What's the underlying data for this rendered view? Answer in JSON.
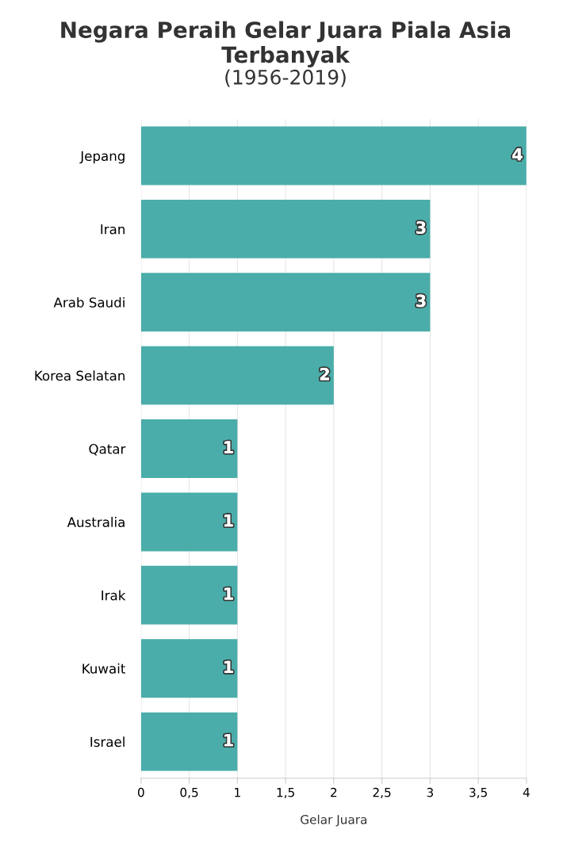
{
  "chart_data": {
    "type": "bar",
    "orientation": "horizontal",
    "title": "Negara Peraih Gelar Juara Piala Asia Terbanyak",
    "subtitle": "(1956-2019)",
    "xlabel": "Gelar Juara",
    "categories": [
      "Jepang",
      "Iran",
      "Arab Saudi",
      "Korea Selatan",
      "Qatar",
      "Australia",
      "Irak",
      "Kuwait",
      "Israel"
    ],
    "values": [
      4,
      3,
      3,
      2,
      1,
      1,
      1,
      1,
      1
    ],
    "color": "#4aada9",
    "xlim": [
      0,
      4
    ],
    "xticks": [
      0,
      {
        "value": 0.5,
        "label": "0,5"
      },
      1,
      {
        "value": 1.5,
        "label": "1,5"
      },
      2,
      {
        "value": 2.5,
        "label": "2,5"
      },
      3,
      {
        "value": 3.5,
        "label": "3,5"
      },
      4
    ],
    "grid": "x",
    "data_labels": true,
    "legend": false
  }
}
